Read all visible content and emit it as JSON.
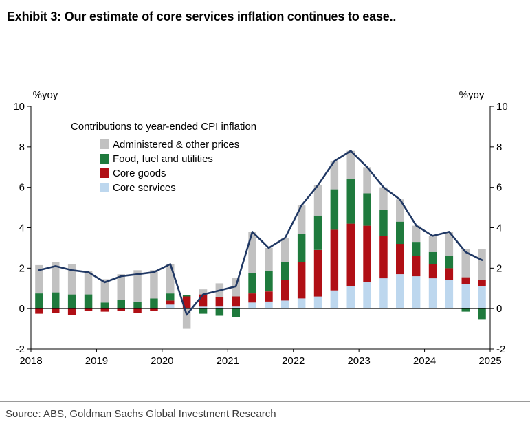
{
  "exhibit": {
    "title": "Exhibit 3: Our estimate of core services inflation continues to ease..",
    "source": "Source: ABS, Goldman Sachs Global Investment Research"
  },
  "chart_data": {
    "type": "bar",
    "subtype": "stacked-bar-with-line",
    "legend_title": "Contributions to year-ended CPI inflation",
    "unit_label_left": "%yoy",
    "unit_label_right": "%yoy",
    "ylim": [
      -2,
      10
    ],
    "yticks": [
      -2,
      0,
      2,
      4,
      6,
      8,
      10
    ],
    "x_tick_labels": [
      "2018",
      "2019",
      "2020",
      "2021",
      "2022",
      "2023",
      "2024",
      "2025"
    ],
    "quarters": [
      "2018Q1",
      "2018Q2",
      "2018Q3",
      "2018Q4",
      "2019Q1",
      "2019Q2",
      "2019Q3",
      "2019Q4",
      "2020Q1",
      "2020Q2",
      "2020Q3",
      "2020Q4",
      "2021Q1",
      "2021Q2",
      "2021Q3",
      "2021Q4",
      "2022Q1",
      "2022Q2",
      "2022Q3",
      "2022Q4",
      "2023Q1",
      "2023Q2",
      "2023Q3",
      "2023Q4",
      "2024Q1",
      "2024Q2",
      "2024Q3",
      "2024Q4"
    ],
    "stacking_note": "bars stack bottom-up in reverse of series order (Core services at bottom, Administered on top); negatives stack below zero",
    "series": [
      {
        "name": "Administered & other prices",
        "color": "#c1c1c1",
        "values": [
          1.4,
          1.5,
          1.5,
          1.15,
          1.15,
          1.25,
          1.55,
          1.4,
          1.45,
          -1.0,
          0.25,
          0.7,
          0.9,
          2.05,
          1.15,
          1.2,
          1.4,
          1.5,
          1.4,
          1.4,
          1.3,
          1.1,
          1.1,
          0.8,
          0.8,
          1.2,
          1.4,
          1.55
        ]
      },
      {
        "name": "Food, fuel and utilities",
        "color": "#1f7a3d",
        "values": [
          0.75,
          0.8,
          0.7,
          0.7,
          0.3,
          0.45,
          0.35,
          0.5,
          0.35,
          0.05,
          -0.25,
          -0.35,
          -0.4,
          1.0,
          1.0,
          0.9,
          1.4,
          1.7,
          2.0,
          2.2,
          1.6,
          1.3,
          1.1,
          0.7,
          0.6,
          0.6,
          -0.15,
          -0.55
        ]
      },
      {
        "name": "Core goods",
        "color": "#b00f15",
        "values": [
          -0.25,
          -0.2,
          -0.3,
          -0.1,
          -0.15,
          -0.1,
          -0.2,
          -0.1,
          0.2,
          0.6,
          0.6,
          0.45,
          0.5,
          0.45,
          0.5,
          1.0,
          1.8,
          2.3,
          3.0,
          3.1,
          2.8,
          2.1,
          1.5,
          1.0,
          0.7,
          0.6,
          0.35,
          0.3
        ]
      },
      {
        "name": "Core services",
        "color": "#bdd7ee",
        "values": [
          0,
          0,
          0,
          0,
          0,
          0,
          0,
          0,
          0.2,
          0,
          0.1,
          0.1,
          0.1,
          0.3,
          0.35,
          0.4,
          0.5,
          0.6,
          0.9,
          1.1,
          1.3,
          1.5,
          1.7,
          1.6,
          1.5,
          1.4,
          1.2,
          1.1
        ]
      }
    ],
    "line": {
      "name": "Year-ended CPI inflation",
      "color": "#203864",
      "values": [
        1.9,
        2.1,
        1.9,
        1.8,
        1.3,
        1.6,
        1.7,
        1.8,
        2.2,
        -0.3,
        0.7,
        0.9,
        1.1,
        3.8,
        3.0,
        3.5,
        5.1,
        6.1,
        7.3,
        7.8,
        7.0,
        6.0,
        5.4,
        4.1,
        3.6,
        3.8,
        2.8,
        2.4
      ]
    }
  }
}
